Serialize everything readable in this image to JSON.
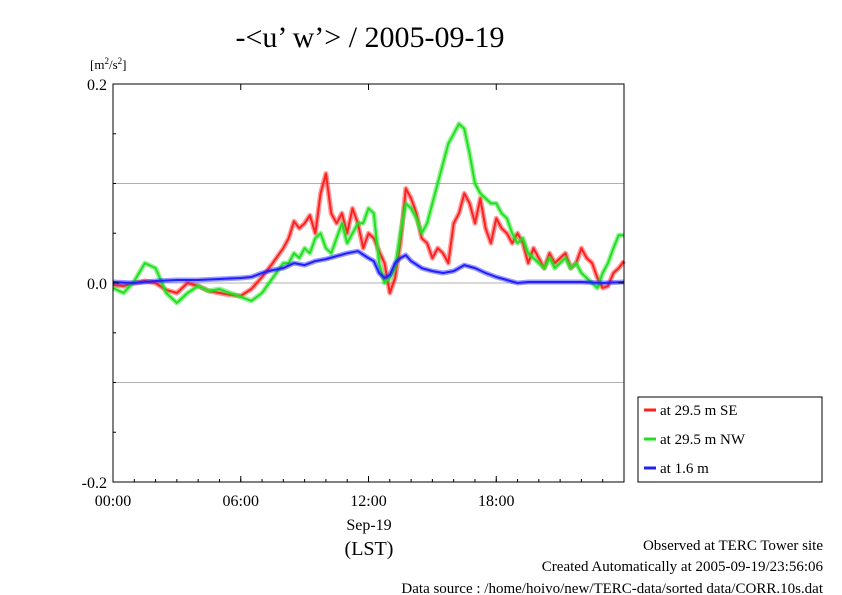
{
  "chart_data": {
    "type": "line",
    "title": "-<u’ w’> / 2005-09-19",
    "ylabel": "[m²/s²]",
    "ylabel_parts": {
      "pre": "[m",
      "sup1": "2",
      "mid": "/s",
      "sup2": "2",
      "post": "]"
    },
    "xlabel_date": "Sep-19",
    "xlabel_tz": "(LST)",
    "xlim": [
      0,
      24
    ],
    "ylim": [
      -0.2,
      0.2
    ],
    "x_ticks": [
      {
        "value": 0,
        "label": "00:00"
      },
      {
        "value": 6,
        "label": "06:00"
      },
      {
        "value": 12,
        "label": "12:00"
      },
      {
        "value": 18,
        "label": "18:00"
      }
    ],
    "y_ticks": [
      {
        "value": 0.2,
        "label": "0.2"
      },
      {
        "value": 0.0,
        "label": "0.0"
      },
      {
        "value": -0.2,
        "label": "-0.2"
      }
    ],
    "y_gridlines": [
      0.1,
      0.0,
      -0.1
    ],
    "grid": "horizontal",
    "legend_position": "right-bottom",
    "x_unit": "hour (LST)",
    "series": [
      {
        "name": "at 29.5 m SE",
        "color": "#ff2020",
        "x": [
          0,
          0.5,
          1,
          1.5,
          2,
          2.5,
          3,
          3.5,
          4,
          4.5,
          5,
          5.5,
          6,
          6.5,
          7,
          7.5,
          8,
          8.25,
          8.5,
          8.75,
          9,
          9.25,
          9.5,
          9.75,
          10,
          10.25,
          10.5,
          10.75,
          11,
          11.25,
          11.5,
          11.75,
          12,
          12.25,
          12.5,
          12.75,
          13,
          13.25,
          13.5,
          13.75,
          14,
          14.25,
          14.5,
          14.75,
          15,
          15.25,
          15.5,
          15.75,
          16,
          16.25,
          16.5,
          16.75,
          17,
          17.25,
          17.5,
          17.75,
          18,
          18.25,
          18.5,
          18.75,
          19,
          19.25,
          19.5,
          19.75,
          20,
          20.25,
          20.5,
          20.75,
          21,
          21.25,
          21.5,
          21.75,
          22,
          22.25,
          22.5,
          22.75,
          23,
          23.25,
          23.5,
          23.75,
          24
        ],
        "y": [
          -0.002,
          -0.003,
          0.0,
          0.002,
          0.0,
          -0.007,
          -0.01,
          0.0,
          -0.003,
          -0.008,
          -0.01,
          -0.012,
          -0.013,
          -0.006,
          0.006,
          0.02,
          0.035,
          0.045,
          0.062,
          0.055,
          0.06,
          0.068,
          0.05,
          0.09,
          0.11,
          0.07,
          0.06,
          0.07,
          0.05,
          0.075,
          0.06,
          0.035,
          0.05,
          0.045,
          0.032,
          0.02,
          -0.01,
          0.005,
          0.04,
          0.095,
          0.085,
          0.07,
          0.045,
          0.04,
          0.025,
          0.035,
          0.03,
          0.02,
          0.06,
          0.07,
          0.09,
          0.08,
          0.06,
          0.085,
          0.055,
          0.04,
          0.065,
          0.055,
          0.05,
          0.04,
          0.05,
          0.04,
          0.02,
          0.035,
          0.025,
          0.015,
          0.03,
          0.02,
          0.025,
          0.03,
          0.015,
          0.02,
          0.035,
          0.025,
          0.02,
          0.005,
          -0.005,
          -0.003,
          0.01,
          0.015,
          0.022
        ]
      },
      {
        "name": "at 29.5 m NW",
        "color": "#20e020",
        "x": [
          0,
          0.5,
          1,
          1.5,
          2,
          2.5,
          3,
          3.5,
          4,
          4.5,
          5,
          5.5,
          6,
          6.5,
          7,
          7.5,
          8,
          8.25,
          8.5,
          8.75,
          9,
          9.25,
          9.5,
          9.75,
          10,
          10.25,
          10.5,
          10.75,
          11,
          11.25,
          11.5,
          11.75,
          12,
          12.25,
          12.5,
          12.75,
          13,
          13.25,
          13.5,
          13.75,
          14,
          14.25,
          14.5,
          14.75,
          15,
          15.25,
          15.5,
          15.75,
          16,
          16.25,
          16.5,
          16.75,
          17,
          17.25,
          17.5,
          17.75,
          18,
          18.25,
          18.5,
          18.75,
          19,
          19.25,
          19.5,
          19.75,
          20,
          20.25,
          20.5,
          20.75,
          21,
          21.25,
          21.5,
          21.75,
          22,
          22.25,
          22.5,
          22.75,
          23,
          23.25,
          23.5,
          23.75,
          24
        ],
        "y": [
          -0.005,
          -0.01,
          0.002,
          0.02,
          0.015,
          -0.01,
          -0.02,
          -0.01,
          -0.003,
          -0.008,
          -0.006,
          -0.01,
          -0.014,
          -0.018,
          -0.01,
          0.005,
          0.02,
          0.02,
          0.03,
          0.025,
          0.035,
          0.03,
          0.045,
          0.05,
          0.035,
          0.03,
          0.045,
          0.06,
          0.04,
          0.05,
          0.06,
          0.06,
          0.075,
          0.07,
          0.02,
          0.0,
          0.005,
          0.015,
          0.05,
          0.08,
          0.075,
          0.065,
          0.05,
          0.06,
          0.08,
          0.1,
          0.12,
          0.14,
          0.15,
          0.16,
          0.155,
          0.13,
          0.1,
          0.09,
          0.085,
          0.08,
          0.08,
          0.07,
          0.065,
          0.05,
          0.04,
          0.045,
          0.03,
          0.025,
          0.02,
          0.015,
          0.025,
          0.015,
          0.02,
          0.025,
          0.015,
          0.02,
          0.01,
          0.005,
          0.0,
          -0.005,
          0.01,
          0.02,
          0.035,
          0.048,
          0.048
        ]
      },
      {
        "name": "at 1.6 m",
        "color": "#2020ff",
        "x": [
          0,
          1,
          2,
          3,
          4,
          5,
          6,
          6.5,
          7,
          7.5,
          8,
          8.5,
          9,
          9.5,
          10,
          10.5,
          11,
          11.5,
          12,
          12.25,
          12.5,
          12.75,
          13,
          13.25,
          13.5,
          13.75,
          14,
          14.5,
          15,
          15.5,
          16,
          16.5,
          17,
          17.5,
          18,
          18.5,
          19,
          19.5,
          20,
          21,
          22,
          23,
          24
        ],
        "y": [
          0.001,
          0.0,
          0.002,
          0.003,
          0.003,
          0.004,
          0.005,
          0.006,
          0.01,
          0.013,
          0.015,
          0.02,
          0.018,
          0.022,
          0.024,
          0.027,
          0.03,
          0.032,
          0.025,
          0.022,
          0.01,
          0.005,
          0.008,
          0.02,
          0.025,
          0.028,
          0.022,
          0.015,
          0.012,
          0.01,
          0.012,
          0.018,
          0.015,
          0.01,
          0.006,
          0.003,
          0.0,
          0.001,
          0.001,
          0.001,
          0.001,
          0.0,
          0.001
        ]
      }
    ]
  },
  "footer": {
    "line1": "Observed at TERC Tower site",
    "line2": "Created Automatically at 2005-09-19/23:56:06",
    "line3": "Data source : /home/hoivo/new/TERC-data/sorted  data/CORR.10s.dat"
  }
}
